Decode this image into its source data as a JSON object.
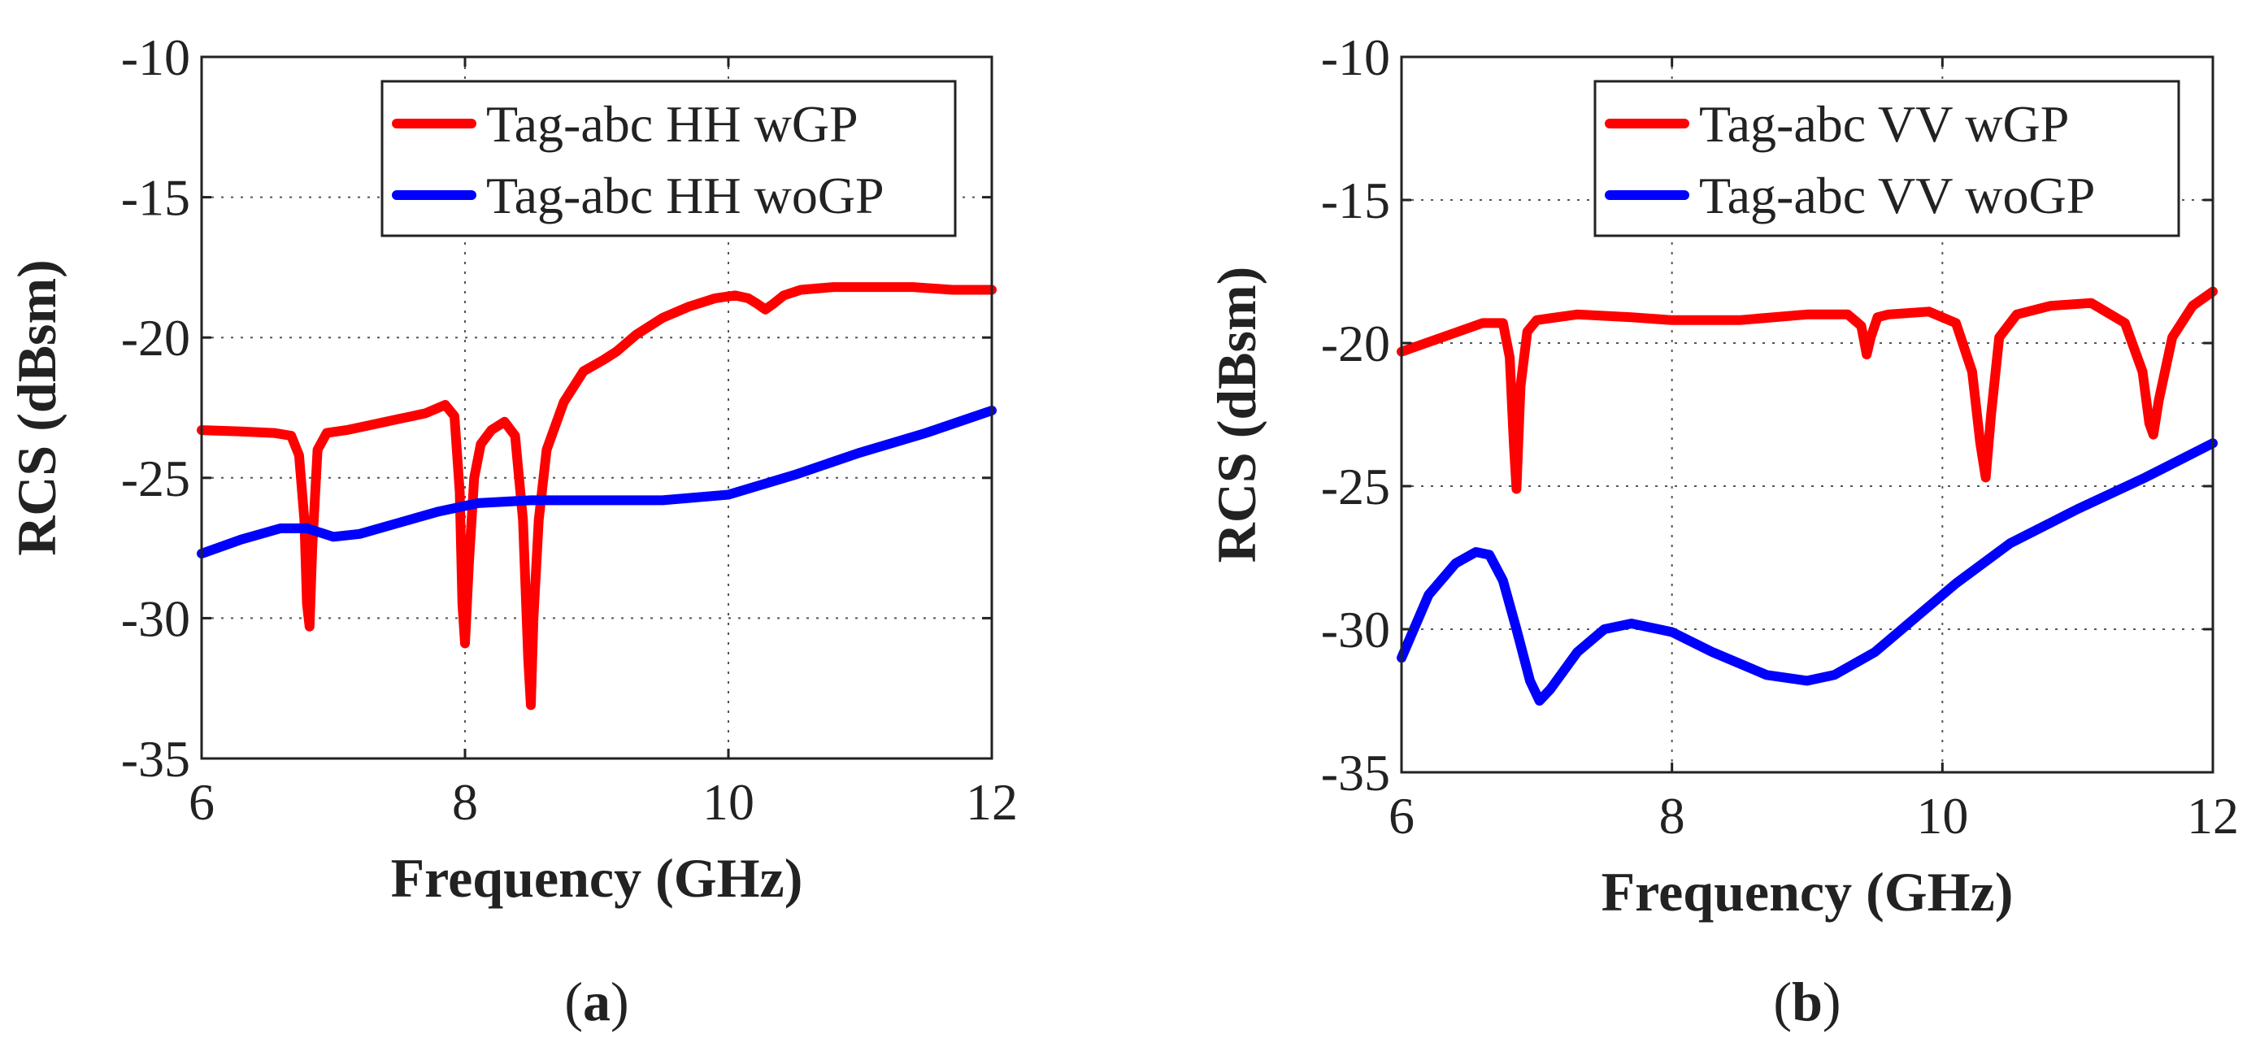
{
  "chart_data": [
    {
      "type": "line",
      "panel_label": {
        "open": "(",
        "letter": "a",
        "close": ")"
      },
      "xlabel": "Frequency (GHz)",
      "ylabel": "RCS (dBsm)",
      "xlim": [
        6,
        12
      ],
      "ylim": [
        -35,
        -10
      ],
      "xticks": [
        6,
        8,
        10,
        12
      ],
      "yticks": [
        -10,
        -15,
        -20,
        -25,
        -30,
        -35
      ],
      "grid": true,
      "legend_position": "top-right",
      "series": [
        {
          "name": "Tag-abc HH wGP",
          "color": "#ff0000",
          "x": [
            6.0,
            6.3,
            6.55,
            6.68,
            6.74,
            6.78,
            6.8,
            6.82,
            6.84,
            6.88,
            6.95,
            7.1,
            7.3,
            7.5,
            7.7,
            7.85,
            7.92,
            7.96,
            7.98,
            8.0,
            8.03,
            8.07,
            8.12,
            8.2,
            8.3,
            8.38,
            8.44,
            8.48,
            8.5,
            8.52,
            8.56,
            8.62,
            8.75,
            8.9,
            9.05,
            9.15,
            9.2,
            9.3,
            9.5,
            9.7,
            9.9,
            10.05,
            10.15,
            10.22,
            10.28,
            10.34,
            10.42,
            10.55,
            10.8,
            11.1,
            11.4,
            11.7,
            12.0
          ],
          "values": [
            -23.3,
            -23.35,
            -23.4,
            -23.5,
            -24.2,
            -26.5,
            -29.5,
            -30.3,
            -27.5,
            -24.0,
            -23.4,
            -23.3,
            -23.1,
            -22.9,
            -22.7,
            -22.4,
            -22.8,
            -25.5,
            -29.5,
            -30.9,
            -28.0,
            -25.0,
            -23.8,
            -23.3,
            -23.0,
            -23.5,
            -26.5,
            -31.5,
            -33.1,
            -30.0,
            -26.5,
            -24.0,
            -22.3,
            -21.2,
            -20.8,
            -20.5,
            -20.3,
            -19.9,
            -19.3,
            -18.9,
            -18.6,
            -18.5,
            -18.6,
            -18.8,
            -19.0,
            -18.8,
            -18.5,
            -18.3,
            -18.2,
            -18.2,
            -18.2,
            -18.3,
            -18.3
          ]
        },
        {
          "name": "Tag-abc HH woGP",
          "color": "#0000ff",
          "x": [
            6.0,
            6.3,
            6.6,
            6.8,
            7.0,
            7.2,
            7.5,
            7.8,
            8.1,
            8.5,
            9.0,
            9.5,
            10.0,
            10.5,
            11.0,
            11.5,
            12.0
          ],
          "values": [
            -27.7,
            -27.2,
            -26.8,
            -26.8,
            -27.1,
            -27.0,
            -26.6,
            -26.2,
            -25.9,
            -25.8,
            -25.8,
            -25.8,
            -25.6,
            -24.9,
            -24.1,
            -23.4,
            -22.6
          ]
        }
      ]
    },
    {
      "type": "line",
      "panel_label": {
        "open": "(",
        "letter": "b",
        "close": ")"
      },
      "xlabel": "Frequency (GHz)",
      "ylabel": "RCS (dBsm)",
      "xlim": [
        6,
        12
      ],
      "ylim": [
        -35,
        -10
      ],
      "xticks": [
        6,
        8,
        10,
        12
      ],
      "yticks": [
        -10,
        -15,
        -20,
        -25,
        -30,
        -35
      ],
      "grid": true,
      "legend_position": "top-right",
      "series": [
        {
          "name": "Tag-abc VV wGP",
          "color": "#ff0000",
          "x": [
            6.0,
            6.3,
            6.6,
            6.75,
            6.8,
            6.83,
            6.85,
            6.88,
            6.93,
            7.0,
            7.3,
            7.7,
            8.0,
            8.5,
            9.0,
            9.3,
            9.4,
            9.44,
            9.47,
            9.52,
            9.6,
            9.9,
            10.1,
            10.22,
            10.28,
            10.32,
            10.36,
            10.42,
            10.55,
            10.8,
            11.1,
            11.35,
            11.48,
            11.53,
            11.56,
            11.6,
            11.7,
            11.85,
            12.0
          ],
          "values": [
            -20.3,
            -19.8,
            -19.3,
            -19.3,
            -20.5,
            -23.5,
            -25.1,
            -21.5,
            -19.6,
            -19.2,
            -19.0,
            -19.1,
            -19.2,
            -19.2,
            -19.0,
            -19.0,
            -19.4,
            -20.4,
            -19.8,
            -19.1,
            -19.0,
            -18.9,
            -19.3,
            -21.0,
            -23.5,
            -24.7,
            -22.5,
            -19.8,
            -19.0,
            -18.7,
            -18.6,
            -19.3,
            -21.0,
            -22.8,
            -23.2,
            -22.0,
            -19.8,
            -18.7,
            -18.2
          ]
        },
        {
          "name": "Tag-abc VV woGP",
          "color": "#0000ff",
          "x": [
            6.0,
            6.2,
            6.4,
            6.55,
            6.65,
            6.75,
            6.85,
            6.95,
            7.02,
            7.1,
            7.3,
            7.5,
            7.7,
            8.0,
            8.3,
            8.7,
            9.0,
            9.2,
            9.5,
            9.8,
            10.1,
            10.5,
            11.0,
            11.5,
            12.0
          ],
          "values": [
            -31.0,
            -28.8,
            -27.7,
            -27.3,
            -27.4,
            -28.3,
            -30.0,
            -31.8,
            -32.5,
            -32.1,
            -30.8,
            -30.0,
            -29.8,
            -30.1,
            -30.8,
            -31.6,
            -31.8,
            -31.6,
            -30.8,
            -29.6,
            -28.4,
            -27.0,
            -25.8,
            -24.7,
            -23.5
          ]
        }
      ]
    }
  ]
}
